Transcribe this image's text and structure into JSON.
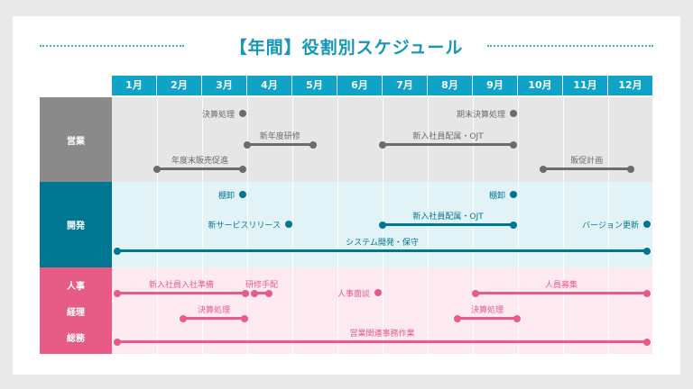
{
  "title": "【年間】役割別スケジュール",
  "months": [
    "1月",
    "2月",
    "3月",
    "4月",
    "5月",
    "6月",
    "7月",
    "8月",
    "9月",
    "10月",
    "11月",
    "12月"
  ],
  "colors": {
    "header": "#0ea3c7",
    "sales": "#8a8a8a",
    "sales_bg": "#e6e6e6",
    "sales_item": "#6e6a6a",
    "dev": "#007690",
    "dev_bg": "#e2f3f8",
    "dev_item": "#007690",
    "admin": "#e65c86",
    "admin_bg": "#fdeaf0",
    "admin_item": "#e65c86"
  },
  "groups": [
    {
      "key": "sales",
      "labels": [
        "営業"
      ],
      "items": [
        {
          "label": "決算処理",
          "type": "point",
          "at": 2.9,
          "lane": 0
        },
        {
          "label": "新年度研修",
          "type": "range",
          "start": 3.0,
          "end": 4.45,
          "lane": 1
        },
        {
          "label": "年度末販売促進",
          "type": "range",
          "start": 1.0,
          "end": 2.9,
          "lane": 2
        },
        {
          "label": "期末決算処理",
          "type": "point",
          "at": 8.9,
          "lane": 0
        },
        {
          "label": "新入社員配属・OJT",
          "type": "range",
          "start": 6.0,
          "end": 8.9,
          "lane": 1
        },
        {
          "label": "販促計画",
          "type": "range",
          "start": 9.55,
          "end": 11.5,
          "lane": 2
        }
      ]
    },
    {
      "key": "dev",
      "labels": [
        "開発"
      ],
      "items": [
        {
          "label": "棚卸",
          "type": "point",
          "at": 2.9,
          "lane": 0
        },
        {
          "label": "新サービスリリース",
          "type": "point",
          "at": 3.92,
          "lane": 1
        },
        {
          "label": "棚卸",
          "type": "point",
          "at": 8.9,
          "lane": 0
        },
        {
          "label": "新入社員配属・OJT",
          "type": "range",
          "start": 6.0,
          "end": 8.9,
          "lane": 1
        },
        {
          "label": "バージョン更新",
          "type": "point",
          "at": 11.86,
          "lane": 1
        },
        {
          "label": "システム開発・保守",
          "type": "range",
          "start": 0.12,
          "end": 11.86,
          "lane": 2
        }
      ]
    },
    {
      "key": "admin",
      "labels": [
        "人事",
        "経理",
        "総務"
      ],
      "items": [
        {
          "label": "新入社員入社準備",
          "type": "range",
          "start": 0.12,
          "end": 2.96,
          "lane": 0
        },
        {
          "label": "研修手配",
          "type": "range",
          "start": 3.16,
          "end": 3.48,
          "lane": 0
        },
        {
          "label": "人事面談",
          "type": "point",
          "at": 5.9,
          "lane": 0
        },
        {
          "label": "人員募集",
          "type": "range",
          "start": 8.06,
          "end": 11.86,
          "lane": 0
        },
        {
          "label": "決算処理",
          "type": "range",
          "start": 1.58,
          "end": 2.94,
          "lane": 1
        },
        {
          "label": "決算処理",
          "type": "range",
          "start": 7.66,
          "end": 8.98,
          "lane": 1
        },
        {
          "label": "営業関連事務作業",
          "type": "range",
          "start": 0.12,
          "end": 11.86,
          "lane": 2
        }
      ]
    }
  ]
}
